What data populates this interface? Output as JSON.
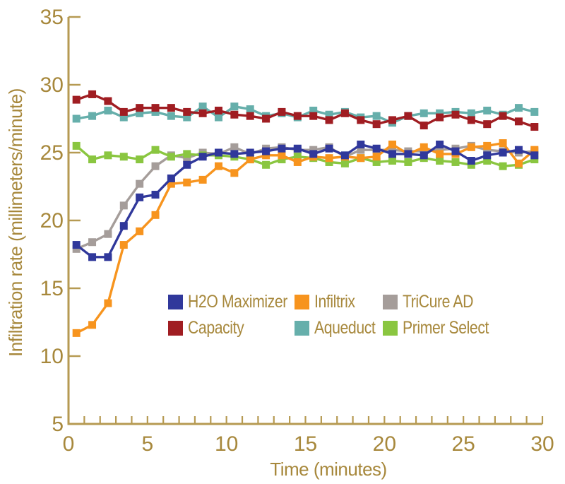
{
  "chart_data": {
    "type": "line",
    "title": "",
    "xlabel": "Time (minutes)",
    "ylabel": "Infiltration rate (millimeters/minute)",
    "xlim": [
      0,
      30
    ],
    "ylim": [
      5,
      35
    ],
    "x_tick_labels": [
      0,
      5,
      10,
      15,
      20,
      25,
      30
    ],
    "x_minor_tick_step": 1,
    "y_tick_labels": [
      5,
      10,
      15,
      20,
      25,
      30,
      35
    ],
    "y_tick_marks": [
      10,
      15,
      20,
      25,
      30,
      35
    ],
    "grid": false,
    "legend_position": "inside-center-two-rows",
    "marker": "square",
    "x": [
      0.5,
      1.5,
      2.5,
      3.5,
      4.5,
      5.5,
      6.5,
      7.5,
      8.5,
      9.5,
      10.5,
      11.5,
      12.5,
      13.5,
      14.5,
      15.5,
      16.5,
      17.5,
      18.5,
      19.5,
      20.5,
      21.5,
      22.5,
      23.5,
      24.5,
      25.5,
      26.5,
      27.5,
      28.5,
      29.5
    ],
    "series": [
      {
        "name": "H2O Maximizer",
        "color": "#30389b",
        "values": [
          18.2,
          17.3,
          17.3,
          19.6,
          21.7,
          21.9,
          23.1,
          24.1,
          24.7,
          25.0,
          24.9,
          25.0,
          25.1,
          25.3,
          25.3,
          24.9,
          25.3,
          24.8,
          25.6,
          25.3,
          24.9,
          24.9,
          24.8,
          25.6,
          25.1,
          24.4,
          24.8,
          25.0,
          25.2,
          24.8
        ]
      },
      {
        "name": "Infiltrix",
        "color": "#f7941e",
        "values": [
          11.7,
          12.3,
          13.9,
          18.2,
          19.2,
          20.4,
          22.7,
          22.8,
          23.0,
          24.0,
          23.5,
          24.5,
          24.8,
          24.8,
          24.3,
          24.7,
          24.6,
          24.7,
          24.6,
          24.7,
          25.6,
          24.9,
          25.4,
          24.9,
          24.9,
          25.4,
          25.5,
          25.7,
          24.2,
          25.2
        ]
      },
      {
        "name": "TriCure AD",
        "color": "#a59d9a",
        "values": [
          17.9,
          18.4,
          19.0,
          21.1,
          22.7,
          24.0,
          24.8,
          24.6,
          25.0,
          24.9,
          25.4,
          24.9,
          25.3,
          25.4,
          25.2,
          25.2,
          25.4,
          24.7,
          25.2,
          25.2,
          25.2,
          25.1,
          25.1,
          25.2,
          25.3,
          25.5,
          25.2,
          25.1,
          25.0,
          25.1
        ]
      },
      {
        "name": "Capacity",
        "color": "#a01d22",
        "values": [
          28.9,
          29.3,
          28.8,
          28.0,
          28.3,
          28.3,
          28.3,
          28.0,
          27.9,
          28.1,
          27.8,
          27.7,
          27.5,
          28.0,
          27.7,
          27.7,
          27.4,
          27.9,
          27.4,
          27.1,
          27.4,
          27.7,
          27.0,
          27.6,
          27.8,
          27.4,
          27.1,
          27.7,
          27.3,
          26.9
        ]
      },
      {
        "name": "Aqueduct",
        "color": "#66afab",
        "values": [
          27.5,
          27.7,
          28.1,
          27.6,
          27.9,
          28.0,
          27.7,
          27.6,
          28.4,
          27.6,
          28.4,
          28.2,
          27.7,
          27.9,
          27.6,
          28.1,
          27.8,
          28.0,
          27.6,
          27.7,
          27.2,
          27.7,
          27.9,
          27.9,
          28.0,
          27.9,
          28.1,
          27.8,
          28.3,
          28.0
        ]
      },
      {
        "name": "Primer Select",
        "color": "#8ac640",
        "values": [
          25.5,
          24.5,
          24.8,
          24.7,
          24.5,
          25.2,
          24.7,
          24.9,
          24.8,
          24.8,
          24.7,
          24.5,
          24.1,
          24.5,
          24.7,
          24.6,
          24.3,
          24.2,
          24.6,
          24.3,
          24.4,
          24.3,
          24.6,
          24.4,
          24.3,
          24.1,
          24.4,
          24.0,
          24.1,
          24.5
        ]
      }
    ],
    "colors": {
      "axis": "#b69a52",
      "text": "#a7883c",
      "background": "#ffffff"
    }
  }
}
